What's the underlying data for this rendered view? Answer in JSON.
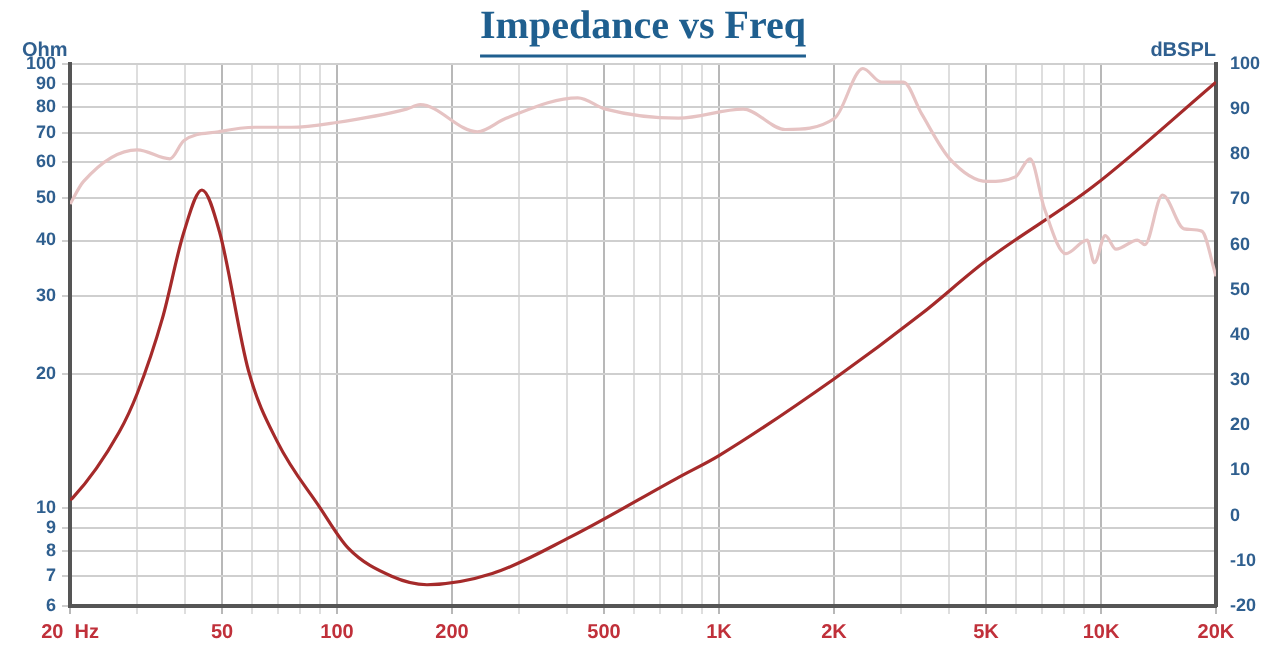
{
  "chart_data": {
    "type": "line",
    "title": "Impedance vs Freq",
    "ylabel": "Ohm",
    "y2label": "dBSPL",
    "log": "xy",
    "grid": true,
    "legend": false,
    "marker": "none",
    "line_style": "solid",
    "xlim": [
      20,
      20000
    ],
    "xticks": [
      {
        "value": 20,
        "label": "20  Hz"
      },
      {
        "value": 30,
        "label": null
      },
      {
        "value": 40,
        "label": null
      },
      50,
      {
        "value": 60,
        "label": null
      },
      {
        "value": 70,
        "label": null
      },
      {
        "value": 80,
        "label": null
      },
      {
        "value": 90,
        "label": null
      },
      100,
      200,
      {
        "value": 300,
        "label": null
      },
      {
        "value": 400,
        "label": null
      },
      500,
      {
        "value": 600,
        "label": null
      },
      {
        "value": 700,
        "label": null
      },
      {
        "value": 800,
        "label": null
      },
      {
        "value": 900,
        "label": null
      },
      {
        "value": 1000,
        "label": "1K"
      },
      {
        "value": 2000,
        "label": "2K"
      },
      {
        "value": 3000,
        "label": null
      },
      {
        "value": 4000,
        "label": null
      },
      {
        "value": 5000,
        "label": "5K"
      },
      {
        "value": 6000,
        "label": null
      },
      {
        "value": 7000,
        "label": null
      },
      {
        "value": 8000,
        "label": null
      },
      {
        "value": 9000,
        "label": null
      },
      {
        "value": 10000,
        "label": "10K"
      },
      {
        "value": 20000,
        "label": "20K"
      }
    ],
    "ylim": [
      6,
      100
    ],
    "yticks": [
      6,
      7,
      8,
      9,
      10,
      20,
      30,
      40,
      50,
      60,
      70,
      80,
      90,
      100
    ],
    "y2lim": [
      -20,
      100
    ],
    "y2ticks": [
      -20,
      -10,
      0,
      10,
      20,
      30,
      40,
      50,
      60,
      70,
      80,
      90,
      100
    ],
    "series": [
      {
        "type": "line",
        "color": "#e6c3c3",
        "axis": "y2",
        "x": [
          20,
          21.7,
          30,
          36.5,
          39.7,
          49,
          61,
          76,
          98.8,
          152,
          165,
          233,
          277,
          427,
          505,
          783,
          1157,
          1489,
          2008,
          2380,
          2660,
          3040,
          3390,
          4020,
          5040,
          5970,
          6520,
          7110,
          8090,
          9200,
          9610,
          10260,
          10950,
          12460,
          13020,
          14490,
          16500,
          18350,
          20000
        ],
        "values": [
          69,
          74,
          81,
          79,
          83,
          85,
          86,
          86,
          87,
          90,
          91,
          85,
          88,
          92.5,
          90,
          88,
          90,
          85.5,
          88,
          99,
          96,
          96,
          89,
          79,
          74,
          75,
          79,
          68,
          58,
          61,
          56,
          62,
          59,
          61,
          60,
          71,
          63.5,
          63,
          53
        ]
      },
      {
        "type": "line",
        "color": "#a52a2a",
        "axis": "y",
        "x": [
          20,
          20.3,
          26.9,
          30,
          34.9,
          39.7,
          44.3,
          49.3,
          58.6,
          69.7,
          90.2,
          107,
          139,
          172,
          255,
          410,
          784,
          1000,
          2000,
          3383,
          5000,
          9550,
          20000
        ],
        "values": [
          10.4,
          10.5,
          14.8,
          18.1,
          26.7,
          41.7,
          52,
          41.7,
          20.4,
          14.1,
          10,
          8.1,
          7,
          6.7,
          7.1,
          8.6,
          11.7,
          13.1,
          19.5,
          27.3,
          36,
          53,
          91
        ]
      }
    ]
  }
}
